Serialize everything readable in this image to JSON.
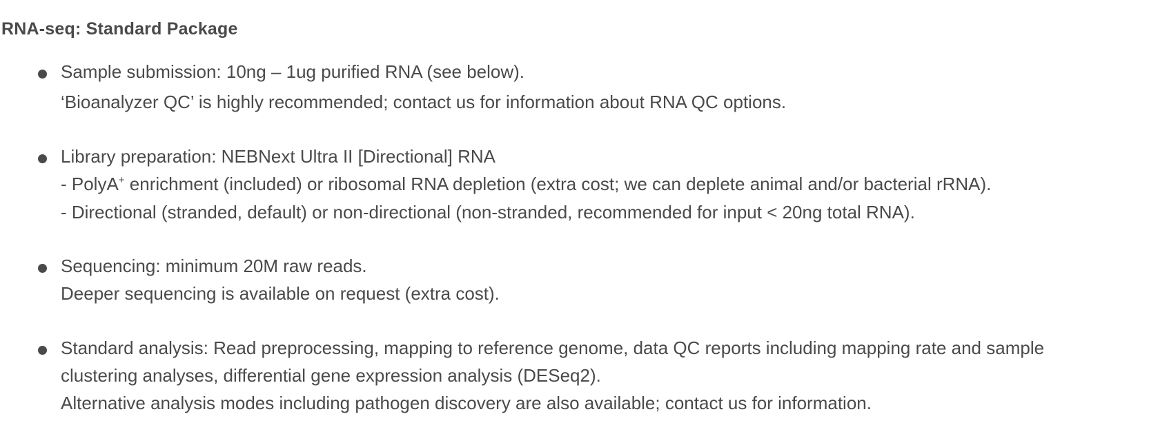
{
  "heading": "RNA-seq: Standard Package",
  "items": [
    {
      "line1": "Sample submission: 10ng – 1ug purified RNA (see below).",
      "line2": "‘Bioanalyzer QC’ is highly recommended; contact us for information about RNA QC options."
    },
    {
      "line1": "Library preparation: NEBNext Ultra II [Directional] RNA",
      "line2_before": "- PolyA",
      "line2_sup": "+",
      "line2_after": " enrichment (included) or ribosomal RNA depletion (extra cost; we can deplete animal and/or bacterial rRNA).",
      "line3": "- Directional (stranded, default) or non-directional (non-stranded, recommended for input < 20ng total RNA)."
    },
    {
      "line1": "Sequencing: minimum 20M raw reads.",
      "line2": "Deeper sequencing is available on request (extra cost)."
    },
    {
      "line1": "Standard analysis: Read preprocessing, mapping to reference genome, data QC reports including mapping rate and sample",
      "line2": "clustering analyses, differential gene expression analysis (DESeq2).",
      "line3": "Alternative analysis modes including pathogen discovery are also available; contact us for information."
    }
  ]
}
